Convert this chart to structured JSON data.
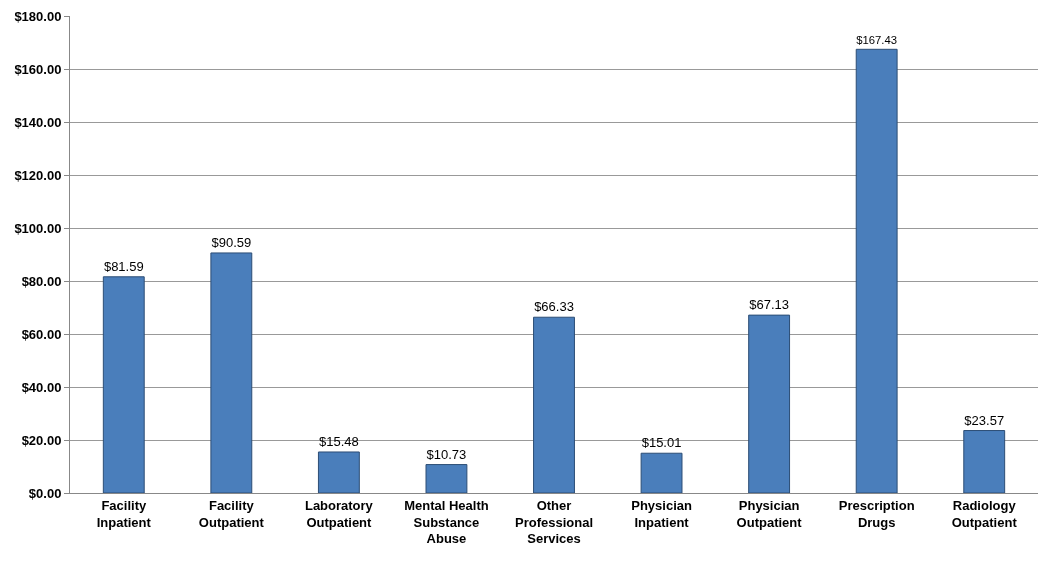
{
  "chart_data": {
    "type": "bar",
    "categories": [
      "Facility Inpatient",
      "Facility Outpatient",
      "Laboratory Outpatient",
      "Mental Health Substance Abuse",
      "Other Professional Services",
      "Physician Inpatient",
      "Physician Outpatient",
      "Prescription Drugs",
      "Radiology Outpatient"
    ],
    "values": [
      81.59,
      90.59,
      15.48,
      10.73,
      66.33,
      15.01,
      67.13,
      167.43,
      23.57
    ],
    "value_labels": [
      "$81.59",
      "$90.59",
      "$15.48",
      "$10.73",
      "$66.33",
      "$15.01",
      "$67.13",
      "$167.43",
      "$23.57"
    ],
    "color": "#4a7ebb",
    "ylim": [
      0,
      180
    ],
    "yticks": [
      {
        "value": 0,
        "label": "$0.00"
      },
      {
        "value": 20,
        "label": "$20.00"
      },
      {
        "value": 40,
        "label": "$40.00"
      },
      {
        "value": 60,
        "label": "$60.00"
      },
      {
        "value": 80,
        "label": "$80.00"
      },
      {
        "value": 100,
        "label": "$100.00"
      },
      {
        "value": 120,
        "label": "$120.00"
      },
      {
        "value": 140,
        "label": "$140.00"
      },
      {
        "value": 160,
        "label": "$160.00"
      },
      {
        "value": 180,
        "label": "$180.00"
      }
    ],
    "grid": "y"
  }
}
